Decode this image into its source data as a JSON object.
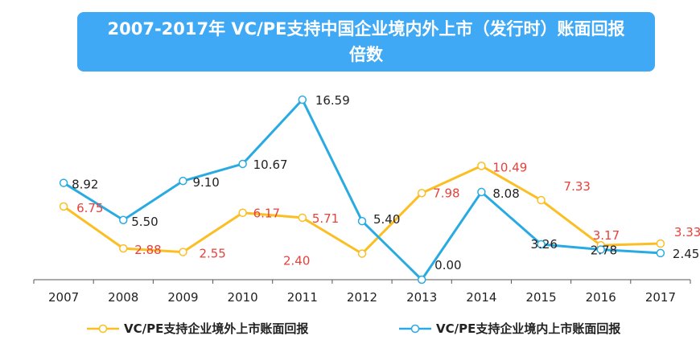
{
  "title": "2007-2017年 VC/PE支持中国企业境内外上市（发行时）账面回报倍数",
  "colors": {
    "overseas": "#fbbf24",
    "domestic": "#29abe2",
    "overseas_label": "#e8413c",
    "domestic_label": "#222222",
    "title_bg": "#3fa9f5"
  },
  "chart_data": {
    "type": "line",
    "x": [
      "2007",
      "2008",
      "2009",
      "2010",
      "2011",
      "2012",
      "2013",
      "2014",
      "2015",
      "2016",
      "2017"
    ],
    "ylim": [
      0,
      18
    ],
    "grid": false,
    "legend_position": "bottom",
    "series": [
      {
        "name": "VC/PE支持企业境外上市账面回报",
        "values": [
          6.75,
          2.88,
          2.55,
          6.17,
          5.71,
          2.4,
          7.98,
          10.49,
          7.33,
          3.17,
          3.33
        ],
        "labels": [
          "6.75",
          "2.88",
          "2.55",
          "6.17",
          "5.71",
          "2.40",
          "7.98",
          "10.49",
          "7.33",
          "3.17",
          "3.33"
        ]
      },
      {
        "name": "VC/PE支持企业境内上市账面回报",
        "values": [
          8.92,
          5.5,
          9.1,
          10.67,
          16.59,
          5.4,
          0.0,
          8.08,
          3.26,
          2.78,
          2.45
        ],
        "labels": [
          "8.92",
          "5.50",
          "9.10",
          "10.67",
          "16.59",
          "5.40",
          "0.00",
          "8.08",
          "3.26",
          "2.78",
          "2.45"
        ]
      }
    ]
  }
}
